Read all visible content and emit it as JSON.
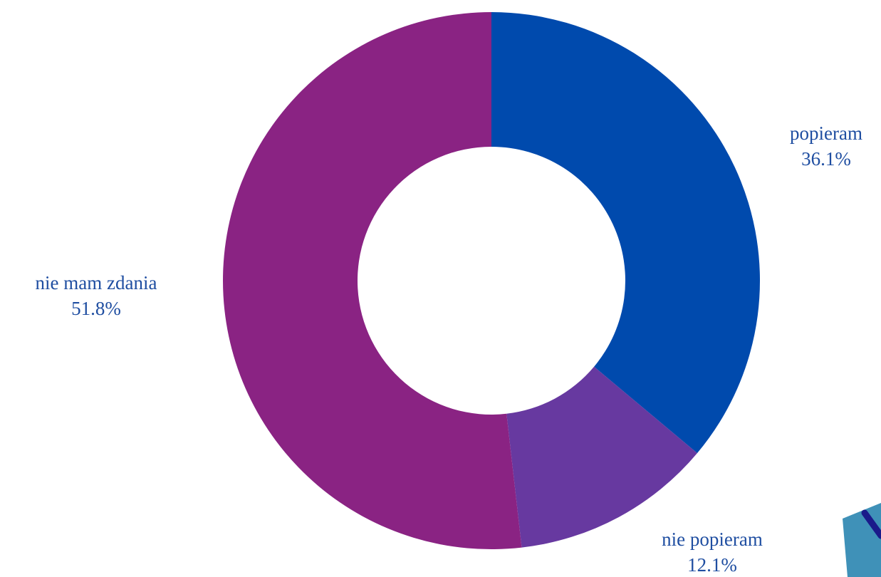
{
  "chart_data": {
    "type": "donut",
    "categories": [
      "popieram",
      "nie popieram",
      "nie mam zdania"
    ],
    "values": [
      36.1,
      12.1,
      51.8
    ],
    "value_labels": [
      "36.1%",
      "12.1%",
      "51.8%"
    ],
    "colors": [
      "#004aad",
      "#6739a0",
      "#8a2383"
    ]
  }
}
